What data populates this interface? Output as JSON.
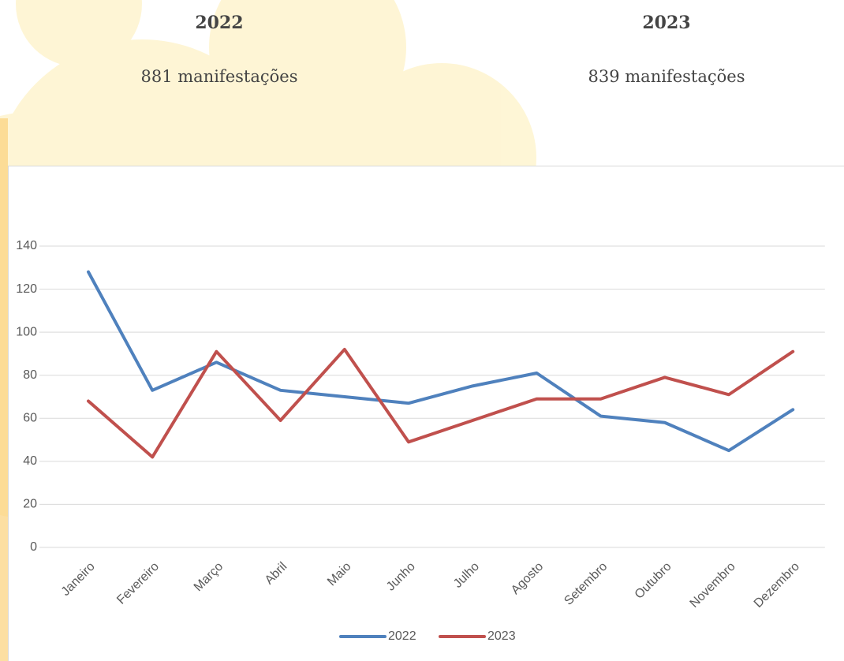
{
  "header": {
    "left": {
      "year": "2022",
      "count": "881 manifestações"
    },
    "right": {
      "year": "2023",
      "count": "839 manifestações"
    }
  },
  "chart_data": {
    "type": "line",
    "categories": [
      "Janeiro",
      "Fevereiro",
      "Março",
      "Abril",
      "Maio",
      "Junho",
      "Julho",
      "Agosto",
      "Setembro",
      "Outubro",
      "Novembro",
      "Dezembro"
    ],
    "series": [
      {
        "name": "2022",
        "color": "#4f81bd",
        "values": [
          128,
          73,
          86,
          73,
          70,
          67,
          75,
          81,
          61,
          58,
          45,
          64
        ]
      },
      {
        "name": "2023",
        "color": "#c0504d",
        "values": [
          68,
          42,
          91,
          59,
          92,
          49,
          59,
          69,
          69,
          79,
          71,
          91
        ]
      }
    ],
    "ylim": [
      0,
      140
    ],
    "yticks": [
      0,
      20,
      40,
      60,
      80,
      100,
      120,
      140
    ],
    "grid": true,
    "legend": "bottom"
  }
}
